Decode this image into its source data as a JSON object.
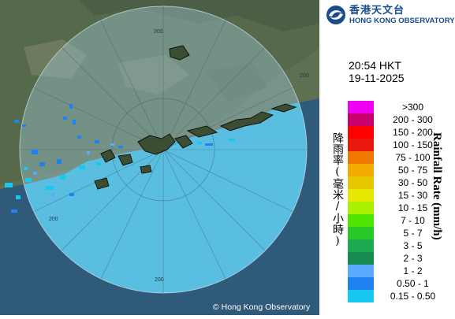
{
  "header": {
    "logo_icon": "hko-swirl-logo",
    "org_name_zh": "香港天文台",
    "org_name_en": "HONG KONG OBSERVATORY"
  },
  "timestamp": {
    "time": "20:54 HKT",
    "date": "19-11-2025"
  },
  "legend": {
    "title_zh": "降雨率(毫米/小時)",
    "title_en": "Rainfall Rate (mm/h)",
    "bins": [
      {
        "label": ">300",
        "color": "#f000f0"
      },
      {
        "label": "200 - 300",
        "color": "#c8006e"
      },
      {
        "label": "150 - 200",
        "color": "#ff0000"
      },
      {
        "label": "100 - 150",
        "color": "#e8180c"
      },
      {
        "label": "75 - 100",
        "color": "#f07800"
      },
      {
        "label": "50 - 75",
        "color": "#f0aa00"
      },
      {
        "label": "30 - 50",
        "color": "#e6c800"
      },
      {
        "label": "15 - 30",
        "color": "#e6e600"
      },
      {
        "label": "10 - 15",
        "color": "#aaf000"
      },
      {
        "label": "7 - 10",
        "color": "#4ee600"
      },
      {
        "label": "5 - 7",
        "color": "#28c828"
      },
      {
        "label": "3 - 5",
        "color": "#1eaa50"
      },
      {
        "label": "2 - 3",
        "color": "#188c50"
      },
      {
        "label": "1 - 2",
        "color": "#5aaaff"
      },
      {
        "label": "0.50 - 1",
        "color": "#1e82f0"
      },
      {
        "label": "0.15 - 0.50",
        "color": "#19c8f0"
      }
    ]
  },
  "map": {
    "range_ring_labels": [
      "200",
      "200",
      "200",
      "200"
    ],
    "copyright": "© Hong Kong Observatory"
  }
}
